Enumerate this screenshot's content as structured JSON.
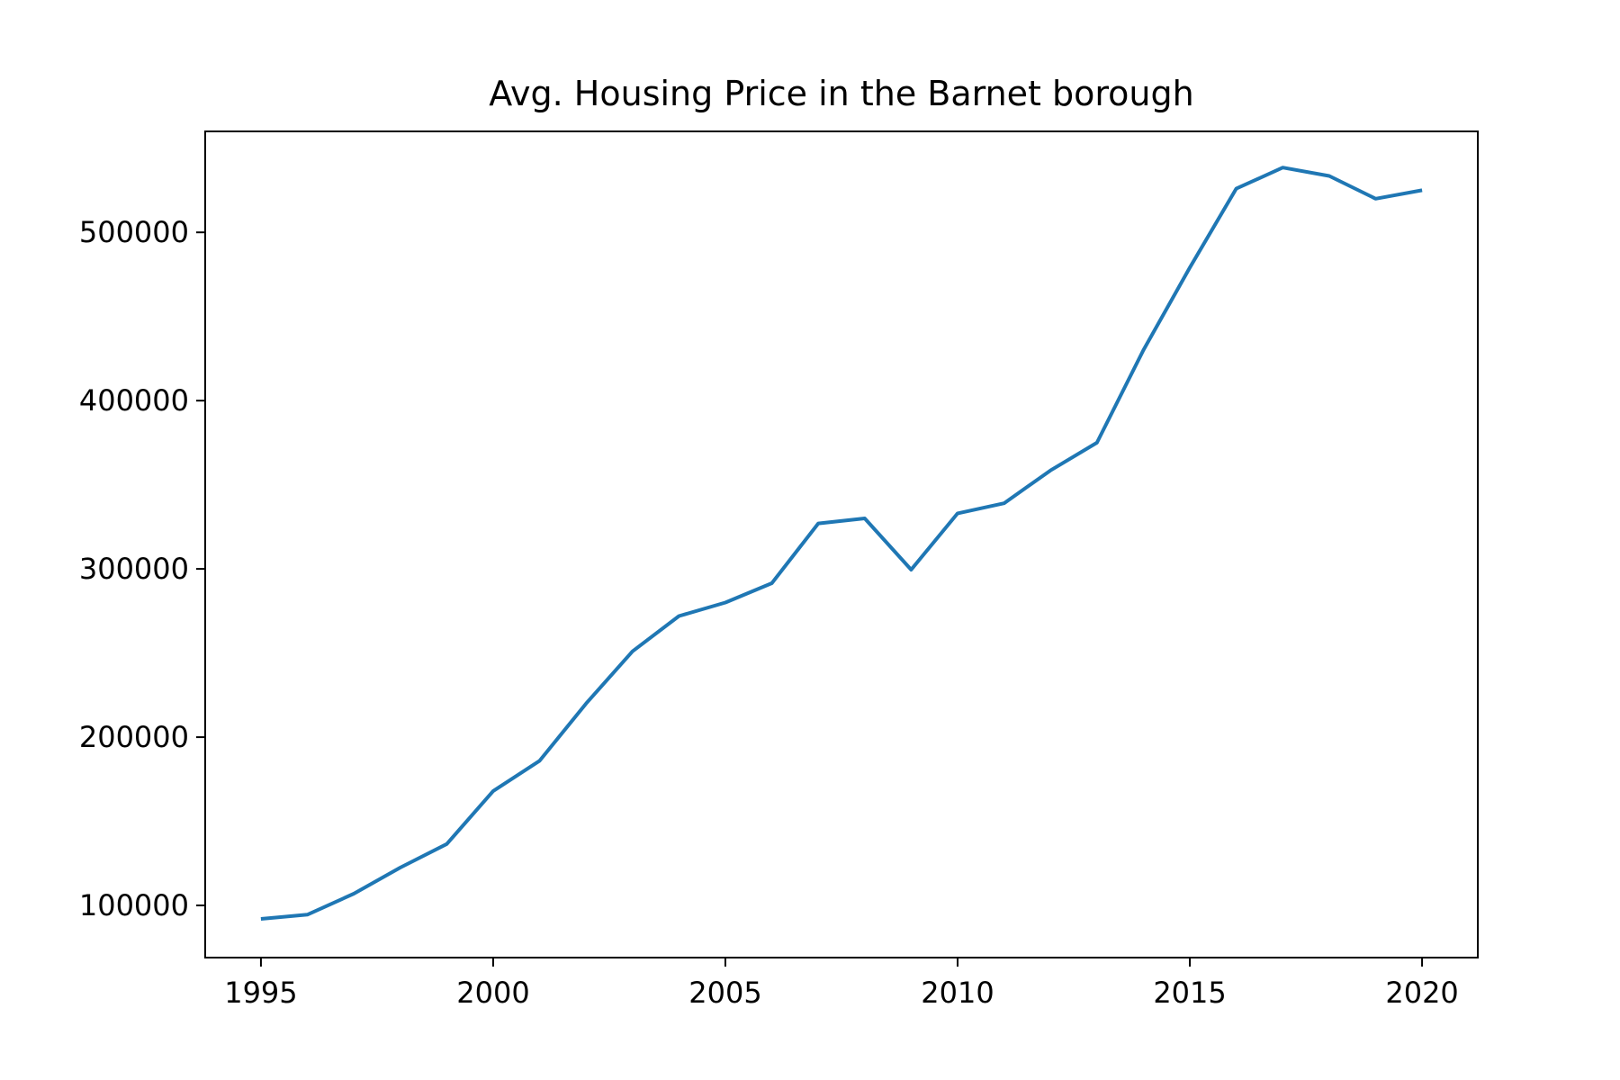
{
  "chart_data": {
    "type": "line",
    "title": "Avg. Housing Price in the Barnet borough",
    "xlabel": "",
    "ylabel": "",
    "xlim": [
      1993.8,
      2021.2
    ],
    "ylim": [
      69000,
      560000
    ],
    "xticks": [
      1995,
      2000,
      2005,
      2010,
      2015,
      2020
    ],
    "xtick_labels": [
      "1995",
      "2000",
      "2005",
      "2010",
      "2015",
      "2020"
    ],
    "yticks": [
      100000,
      200000,
      300000,
      400000,
      500000
    ],
    "ytick_labels": [
      "100000",
      "200000",
      "300000",
      "400000",
      "500000"
    ],
    "grid": false,
    "legend": "none",
    "series": [
      {
        "color": "#1f77b4",
        "x": [
          1995,
          1996,
          1997,
          1998,
          1999,
          2000,
          2001,
          2002,
          2003,
          2004,
          2005,
          2006,
          2007,
          2008,
          2009,
          2010,
          2011,
          2012,
          2013,
          2014,
          2015,
          2016,
          2017,
          2018,
          2019,
          2020
        ],
        "y": [
          92000,
          94500,
          107000,
          122500,
          136500,
          168000,
          186000,
          220000,
          251000,
          272000,
          280000,
          291500,
          327000,
          330000,
          299500,
          333000,
          339000,
          358500,
          375000,
          430000,
          479000,
          526000,
          538500,
          533500,
          520000,
          525000
        ]
      }
    ]
  }
}
